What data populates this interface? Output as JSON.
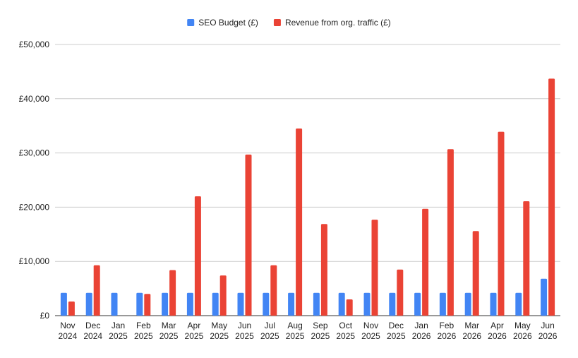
{
  "chart_data": {
    "type": "bar",
    "title": "",
    "xlabel": "",
    "ylabel": "",
    "ylim": [
      0,
      50000
    ],
    "yticks": [
      0,
      10000,
      20000,
      30000,
      40000,
      50000
    ],
    "ytick_labels": [
      "£0",
      "£10,000",
      "£20,000",
      "£30,000",
      "£40,000",
      "£50,000"
    ],
    "grid": true,
    "legend_position": "top-center",
    "categories": [
      [
        "Nov",
        "2024"
      ],
      [
        "Dec",
        "2024"
      ],
      [
        "Jan",
        "2025"
      ],
      [
        "Feb",
        "2025"
      ],
      [
        "Mar",
        "2025"
      ],
      [
        "Apr",
        "2025"
      ],
      [
        "May",
        "2025"
      ],
      [
        "Jun",
        "2025"
      ],
      [
        "Jul",
        "2025"
      ],
      [
        "Aug",
        "2025"
      ],
      [
        "Sep",
        "2025"
      ],
      [
        "Oct",
        "2025"
      ],
      [
        "Nov",
        "2025"
      ],
      [
        "Dec",
        "2025"
      ],
      [
        "Jan",
        "2026"
      ],
      [
        "Feb",
        "2026"
      ],
      [
        "Mar",
        "2026"
      ],
      [
        "Apr",
        "2026"
      ],
      [
        "May",
        "2026"
      ],
      [
        "Jun",
        "2026"
      ]
    ],
    "series": [
      {
        "name": "SEO Budget (£)",
        "color": "#4285f4",
        "values": [
          4200,
          4200,
          4200,
          4200,
          4200,
          4200,
          4200,
          4200,
          4200,
          4200,
          4200,
          4200,
          4200,
          4200,
          4200,
          4200,
          4200,
          4200,
          4200,
          6800
        ]
      },
      {
        "name": "Revenue from org. traffic (£)",
        "color": "#ea4335",
        "values": [
          2600,
          9300,
          0,
          4000,
          8400,
          22000,
          7400,
          29700,
          9300,
          34500,
          16900,
          3000,
          17700,
          8500,
          19700,
          30700,
          15600,
          33900,
          21100,
          43700
        ]
      }
    ]
  }
}
